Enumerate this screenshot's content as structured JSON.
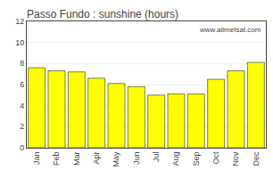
{
  "chart_data": {
    "type": "bar",
    "title": "Passo Fundo : sunshine (hours)",
    "categories": [
      "Jan",
      "Feb",
      "Mar",
      "Apr",
      "May",
      "Jun",
      "Jul",
      "Aug",
      "Sep",
      "Oct",
      "Nov",
      "Dec"
    ],
    "values": [
      7.6,
      7.3,
      7.2,
      6.6,
      6.1,
      5.8,
      5.0,
      5.1,
      5.1,
      6.5,
      7.3,
      8.1
    ],
    "color": "#ffff00",
    "ylim": [
      0,
      12
    ],
    "yticks": [
      0,
      2,
      4,
      6,
      8,
      10,
      12
    ],
    "grid": true,
    "annotations": [
      "www.allmetsat.com"
    ]
  }
}
